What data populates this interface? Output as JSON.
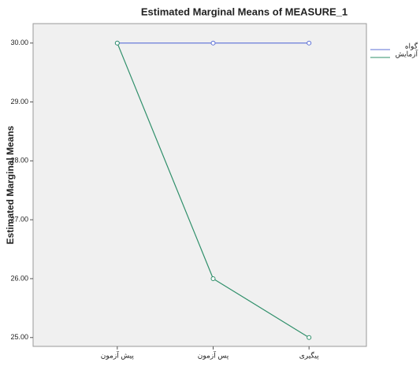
{
  "chart_data": {
    "type": "line",
    "title": "Estimated Marginal Means of MEASURE_1",
    "y_label": "Estimated Marginal Means",
    "categories": [
      "پیش آزمون",
      "پس آزمون",
      "پیگیری"
    ],
    "series": [
      {
        "name": "گواه",
        "color": "#5b6fd6",
        "values": [
          30,
          30,
          30
        ]
      },
      {
        "name": "آزمایش",
        "color": "#2f8f6a",
        "values": [
          30,
          26,
          25
        ]
      }
    ],
    "ylim": [
      24.85,
      30.33
    ],
    "yticks": [
      {
        "value": 25,
        "label": "25.00"
      },
      {
        "value": 26,
        "label": "26.00"
      },
      {
        "value": 27,
        "label": "27.00"
      },
      {
        "value": 28,
        "label": "28.00"
      },
      {
        "value": 29,
        "label": "29.00"
      },
      {
        "value": 30,
        "label": "30.00"
      }
    ],
    "legend": "right"
  }
}
